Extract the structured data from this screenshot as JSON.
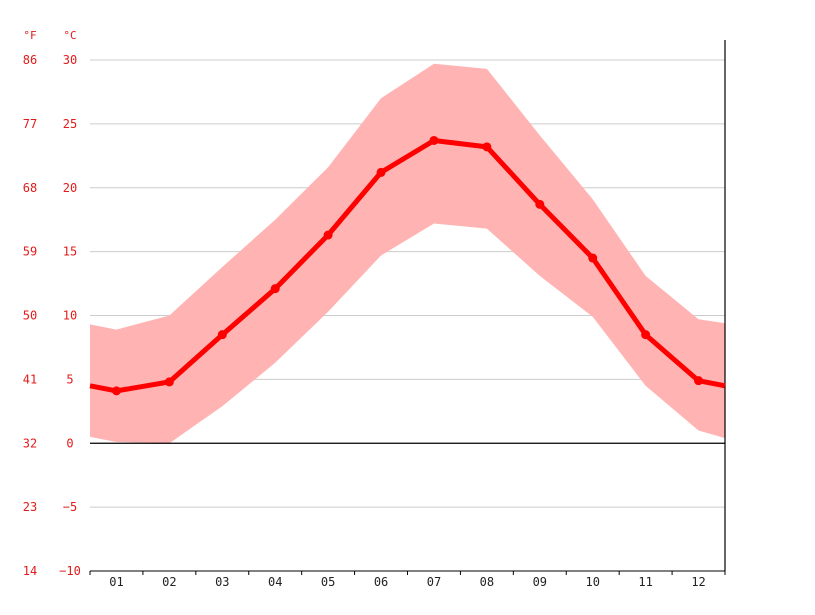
{
  "chart_data": {
    "type": "line",
    "x": [
      "01",
      "02",
      "03",
      "04",
      "05",
      "06",
      "07",
      "08",
      "09",
      "10",
      "11",
      "12"
    ],
    "series": [
      {
        "role": "mean",
        "values": [
          4.1,
          4.8,
          8.5,
          12.1,
          16.3,
          21.2,
          23.7,
          23.2,
          18.7,
          14.5,
          8.5,
          4.9
        ]
      },
      {
        "role": "range-high",
        "values": [
          8.9,
          10.0,
          13.8,
          17.5,
          21.6,
          27.0,
          29.7,
          29.3,
          24.1,
          19.1,
          13.1,
          9.7
        ]
      },
      {
        "role": "range-low",
        "values": [
          0.1,
          0.0,
          2.9,
          6.3,
          10.3,
          14.7,
          17.2,
          16.8,
          13.1,
          9.9,
          4.5,
          1.0
        ]
      }
    ],
    "edge_values": {
      "left_mean": 4.5,
      "right_mean": 4.5,
      "left_high": 9.3,
      "right_high": 9.4,
      "left_low": 0.5,
      "right_low": 0.4
    },
    "y_units": {
      "fahrenheit": "°F",
      "celsius": "°C"
    },
    "y_ticks_celsius": [
      "30",
      "25",
      "20",
      "15",
      "10",
      "5",
      "0",
      "−5",
      "−10"
    ],
    "y_ticks_fahrenheit": [
      "86",
      "77",
      "68",
      "59",
      "50",
      "41",
      "32",
      "23",
      "14"
    ],
    "ylim": [
      -10,
      30
    ],
    "grid": true,
    "colors": {
      "line": "#ff0000",
      "band": "#ffb3b3",
      "grid": "#cccccc",
      "tick_label": "#e21b1b"
    }
  }
}
